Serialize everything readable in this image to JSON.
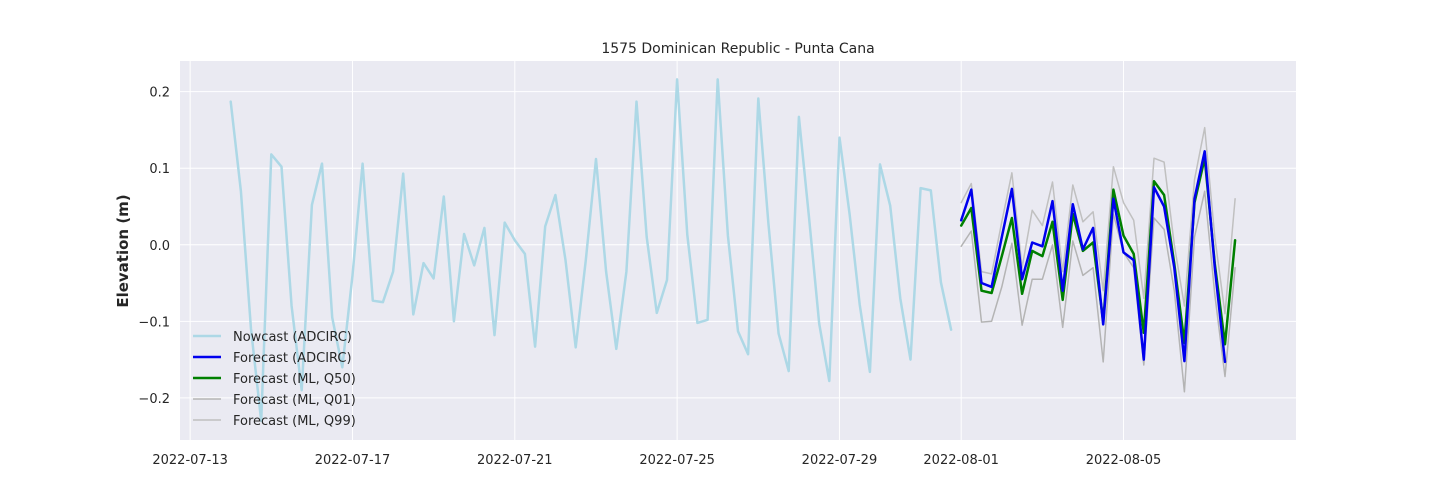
{
  "chart_data": {
    "type": "line",
    "title": "1575 Dominican Republic - Punta Cana",
    "xlabel": "",
    "ylabel": "Elevation (m)",
    "xlim": [
      "2022-07-12T18:00",
      "2022-08-09T06:00"
    ],
    "ylim": [
      -0.255,
      0.24
    ],
    "grid": true,
    "legend_position": "lower left",
    "x_ticks": [
      "2022-07-13",
      "2022-07-17",
      "2022-07-21",
      "2022-07-25",
      "2022-07-29",
      "2022-08-01",
      "2022-08-05"
    ],
    "y_ticks": [
      -0.2,
      -0.1,
      0.0,
      0.1,
      0.2
    ],
    "y_tick_labels": [
      "−0.2",
      "−0.1",
      "0.0",
      "0.1",
      "0.2"
    ],
    "series": [
      {
        "name": "Nowcast (ADCIRC)",
        "color": "#add8e6",
        "width": 2.5,
        "points": [
          [
            "2022-07-14T00:00",
            0.187
          ],
          [
            "2022-07-14T06:00",
            0.07
          ],
          [
            "2022-07-14T12:00",
            -0.11
          ],
          [
            "2022-07-14T18:00",
            -0.23
          ],
          [
            "2022-07-15T00:00",
            0.118
          ],
          [
            "2022-07-15T06:00",
            0.102
          ],
          [
            "2022-07-15T12:00",
            -0.08
          ],
          [
            "2022-07-15T18:00",
            -0.19
          ],
          [
            "2022-07-16T00:00",
            0.052
          ],
          [
            "2022-07-16T06:00",
            0.106
          ],
          [
            "2022-07-16T12:00",
            -0.095
          ],
          [
            "2022-07-16T18:00",
            -0.16
          ],
          [
            "2022-07-17T00:00",
            -0.04
          ],
          [
            "2022-07-17T06:00",
            0.106
          ],
          [
            "2022-07-17T12:00",
            -0.073
          ],
          [
            "2022-07-17T18:00",
            -0.075
          ],
          [
            "2022-07-18T00:00",
            -0.035
          ],
          [
            "2022-07-18T06:00",
            0.093
          ],
          [
            "2022-07-18T12:00",
            -0.091
          ],
          [
            "2022-07-18T18:00",
            -0.024
          ],
          [
            "2022-07-19T00:00",
            -0.044
          ],
          [
            "2022-07-19T06:00",
            0.063
          ],
          [
            "2022-07-19T12:00",
            -0.1
          ],
          [
            "2022-07-19T18:00",
            0.014
          ],
          [
            "2022-07-20T00:00",
            -0.027
          ],
          [
            "2022-07-20T06:00",
            0.022
          ],
          [
            "2022-07-20T12:00",
            -0.118
          ],
          [
            "2022-07-20T18:00",
            0.029
          ],
          [
            "2022-07-21T00:00",
            0.006
          ],
          [
            "2022-07-21T06:00",
            -0.012
          ],
          [
            "2022-07-21T12:00",
            -0.133
          ],
          [
            "2022-07-21T18:00",
            0.024
          ],
          [
            "2022-07-22T00:00",
            0.065
          ],
          [
            "2022-07-22T06:00",
            -0.02
          ],
          [
            "2022-07-22T12:00",
            -0.134
          ],
          [
            "2022-07-22T18:00",
            -0.02
          ],
          [
            "2022-07-23T00:00",
            0.112
          ],
          [
            "2022-07-23T06:00",
            -0.035
          ],
          [
            "2022-07-23T12:00",
            -0.136
          ],
          [
            "2022-07-23T18:00",
            -0.035
          ],
          [
            "2022-07-24T00:00",
            0.187
          ],
          [
            "2022-07-24T06:00",
            0.01
          ],
          [
            "2022-07-24T12:00",
            -0.089
          ],
          [
            "2022-07-24T18:00",
            -0.046
          ],
          [
            "2022-07-25T00:00",
            0.216
          ],
          [
            "2022-07-25T06:00",
            0.013
          ],
          [
            "2022-07-25T12:00",
            -0.102
          ],
          [
            "2022-07-25T18:00",
            -0.098
          ],
          [
            "2022-07-26T00:00",
            0.216
          ],
          [
            "2022-07-26T06:00",
            0.012
          ],
          [
            "2022-07-26T12:00",
            -0.113
          ],
          [
            "2022-07-26T18:00",
            -0.143
          ],
          [
            "2022-07-27T00:00",
            0.191
          ],
          [
            "2022-07-27T06:00",
            0.028
          ],
          [
            "2022-07-27T12:00",
            -0.116
          ],
          [
            "2022-07-27T18:00",
            -0.165
          ],
          [
            "2022-07-28T00:00",
            0.167
          ],
          [
            "2022-07-28T06:00",
            0.036
          ],
          [
            "2022-07-28T12:00",
            -0.103
          ],
          [
            "2022-07-28T18:00",
            -0.178
          ],
          [
            "2022-07-29T00:00",
            0.14
          ],
          [
            "2022-07-29T06:00",
            0.04
          ],
          [
            "2022-07-29T12:00",
            -0.078
          ],
          [
            "2022-07-29T18:00",
            -0.166
          ],
          [
            "2022-07-30T00:00",
            0.105
          ],
          [
            "2022-07-30T06:00",
            0.051
          ],
          [
            "2022-07-30T12:00",
            -0.07
          ],
          [
            "2022-07-30T18:00",
            -0.15
          ],
          [
            "2022-07-31T00:00",
            0.074
          ],
          [
            "2022-07-31T06:00",
            0.071
          ],
          [
            "2022-07-31T12:00",
            -0.049
          ],
          [
            "2022-07-31T18:00",
            -0.111
          ]
        ]
      },
      {
        "name": "Forecast (ADCIRC)",
        "color": "#0000ee",
        "width": 2.5,
        "points": [
          [
            "2022-08-01T00:00",
            0.032
          ],
          [
            "2022-08-01T06:00",
            0.072
          ],
          [
            "2022-08-01T12:00",
            -0.05
          ],
          [
            "2022-08-01T18:00",
            -0.055
          ],
          [
            "2022-08-02T00:00",
            0.01
          ],
          [
            "2022-08-02T06:00",
            0.073
          ],
          [
            "2022-08-02T12:00",
            -0.045
          ],
          [
            "2022-08-02T18:00",
            0.003
          ],
          [
            "2022-08-03T00:00",
            -0.002
          ],
          [
            "2022-08-03T06:00",
            0.057
          ],
          [
            "2022-08-03T12:00",
            -0.06
          ],
          [
            "2022-08-03T18:00",
            0.053
          ],
          [
            "2022-08-04T00:00",
            -0.006
          ],
          [
            "2022-08-04T06:00",
            0.022
          ],
          [
            "2022-08-04T12:00",
            -0.104
          ],
          [
            "2022-08-04T18:00",
            0.06
          ],
          [
            "2022-08-05T00:00",
            -0.01
          ],
          [
            "2022-08-05T06:00",
            -0.02
          ],
          [
            "2022-08-05T12:00",
            -0.15
          ],
          [
            "2022-08-05T18:00",
            0.075
          ],
          [
            "2022-08-06T00:00",
            0.05
          ],
          [
            "2022-08-06T06:00",
            -0.03
          ],
          [
            "2022-08-06T12:00",
            -0.152
          ],
          [
            "2022-08-06T18:00",
            0.06
          ],
          [
            "2022-08-07T00:00",
            0.122
          ],
          [
            "2022-08-07T06:00",
            -0.03
          ],
          [
            "2022-08-07T12:00",
            -0.153
          ]
        ]
      },
      {
        "name": "Forecast (ML, Q50)",
        "color": "#008000",
        "width": 2.5,
        "points": [
          [
            "2022-08-01T00:00",
            0.025
          ],
          [
            "2022-08-01T06:00",
            0.048
          ],
          [
            "2022-08-01T12:00",
            -0.06
          ],
          [
            "2022-08-01T18:00",
            -0.063
          ],
          [
            "2022-08-02T00:00",
            -0.015
          ],
          [
            "2022-08-02T06:00",
            0.035
          ],
          [
            "2022-08-02T12:00",
            -0.064
          ],
          [
            "2022-08-02T18:00",
            -0.008
          ],
          [
            "2022-08-03T00:00",
            -0.015
          ],
          [
            "2022-08-03T06:00",
            0.03
          ],
          [
            "2022-08-03T12:00",
            -0.072
          ],
          [
            "2022-08-03T18:00",
            0.04
          ],
          [
            "2022-08-04T00:00",
            -0.008
          ],
          [
            "2022-08-04T06:00",
            0.003
          ],
          [
            "2022-08-04T12:00",
            -0.1
          ],
          [
            "2022-08-04T18:00",
            0.072
          ],
          [
            "2022-08-05T00:00",
            0.012
          ],
          [
            "2022-08-05T06:00",
            -0.012
          ],
          [
            "2022-08-05T12:00",
            -0.115
          ],
          [
            "2022-08-05T18:00",
            0.083
          ],
          [
            "2022-08-06T00:00",
            0.065
          ],
          [
            "2022-08-06T06:00",
            -0.025
          ],
          [
            "2022-08-06T12:00",
            -0.128
          ],
          [
            "2022-08-06T18:00",
            0.055
          ],
          [
            "2022-08-07T00:00",
            0.113
          ],
          [
            "2022-08-07T06:00",
            -0.025
          ],
          [
            "2022-08-07T12:00",
            -0.13
          ],
          [
            "2022-08-07T18:00",
            0.006
          ]
        ]
      },
      {
        "name": "Forecast (ML, Q01)",
        "color": "#b4b4b4",
        "width": 1.5,
        "points": [
          [
            "2022-08-01T00:00",
            -0.002
          ],
          [
            "2022-08-01T06:00",
            0.018
          ],
          [
            "2022-08-01T12:00",
            -0.101
          ],
          [
            "2022-08-01T18:00",
            -0.1
          ],
          [
            "2022-08-02T00:00",
            -0.055
          ],
          [
            "2022-08-02T06:00",
            0.002
          ],
          [
            "2022-08-02T12:00",
            -0.105
          ],
          [
            "2022-08-02T18:00",
            -0.045
          ],
          [
            "2022-08-03T00:00",
            -0.045
          ],
          [
            "2022-08-03T06:00",
            0.0
          ],
          [
            "2022-08-03T12:00",
            -0.108
          ],
          [
            "2022-08-03T18:00",
            0.005
          ],
          [
            "2022-08-04T00:00",
            -0.04
          ],
          [
            "2022-08-04T06:00",
            -0.03
          ],
          [
            "2022-08-04T12:00",
            -0.153
          ],
          [
            "2022-08-04T18:00",
            0.04
          ],
          [
            "2022-08-05T00:00",
            -0.01
          ],
          [
            "2022-08-05T06:00",
            -0.03
          ],
          [
            "2022-08-05T12:00",
            -0.157
          ],
          [
            "2022-08-05T18:00",
            0.035
          ],
          [
            "2022-08-06T00:00",
            0.02
          ],
          [
            "2022-08-06T06:00",
            -0.06
          ],
          [
            "2022-08-06T12:00",
            -0.192
          ],
          [
            "2022-08-06T18:00",
            0.01
          ],
          [
            "2022-08-07T00:00",
            0.07
          ],
          [
            "2022-08-07T06:00",
            -0.065
          ],
          [
            "2022-08-07T12:00",
            -0.172
          ],
          [
            "2022-08-07T18:00",
            -0.03
          ]
        ]
      },
      {
        "name": "Forecast (ML, Q99)",
        "color": "#c0c0c0",
        "width": 1.5,
        "points": [
          [
            "2022-08-01T00:00",
            0.055
          ],
          [
            "2022-08-01T06:00",
            0.08
          ],
          [
            "2022-08-01T12:00",
            -0.035
          ],
          [
            "2022-08-01T18:00",
            -0.038
          ],
          [
            "2022-08-02T00:00",
            0.03
          ],
          [
            "2022-08-02T06:00",
            0.094
          ],
          [
            "2022-08-02T12:00",
            -0.03
          ],
          [
            "2022-08-02T18:00",
            0.045
          ],
          [
            "2022-08-03T00:00",
            0.025
          ],
          [
            "2022-08-03T06:00",
            0.082
          ],
          [
            "2022-08-03T12:00",
            -0.035
          ],
          [
            "2022-08-03T18:00",
            0.078
          ],
          [
            "2022-08-04T00:00",
            0.03
          ],
          [
            "2022-08-04T06:00",
            0.043
          ],
          [
            "2022-08-04T12:00",
            -0.06
          ],
          [
            "2022-08-04T18:00",
            0.102
          ],
          [
            "2022-08-05T00:00",
            0.055
          ],
          [
            "2022-08-05T06:00",
            0.032
          ],
          [
            "2022-08-05T12:00",
            -0.07
          ],
          [
            "2022-08-05T18:00",
            0.113
          ],
          [
            "2022-08-06T00:00",
            0.108
          ],
          [
            "2022-08-06T06:00",
            0.0
          ],
          [
            "2022-08-06T12:00",
            -0.08
          ],
          [
            "2022-08-06T18:00",
            0.085
          ],
          [
            "2022-08-07T00:00",
            0.153
          ],
          [
            "2022-08-07T06:00",
            0.01
          ],
          [
            "2022-08-07T12:00",
            -0.09
          ],
          [
            "2022-08-07T18:00",
            0.06
          ]
        ]
      }
    ]
  }
}
